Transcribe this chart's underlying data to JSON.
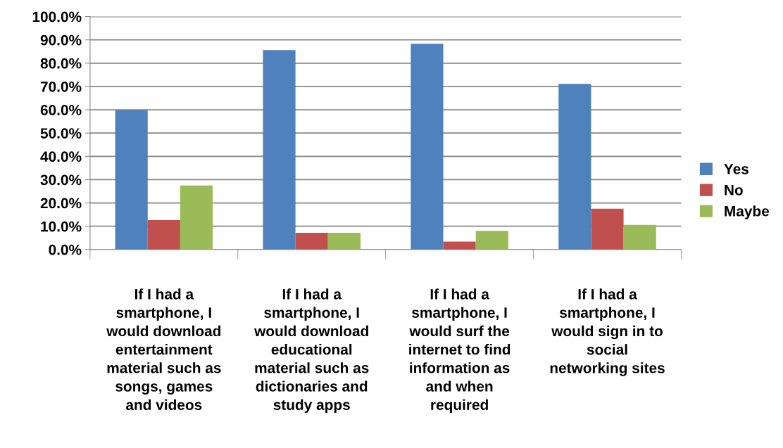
{
  "chart_data": {
    "type": "bar",
    "categories": [
      "If I had a\nsmartphone, I\nwould download\nentertainment\nmaterial such as\nsongs, games\nand videos",
      "If I had a\nsmartphone, I\nwould download\neducational\nmaterial such as\ndictionaries and\nstudy apps",
      "If I had a\nsmartphone, I\nwould surf the\ninternet to find\ninformation as\nand when\nrequired",
      "If I had a\nsmartphone, I\nwould sign in to\nsocial\nnetworking sites"
    ],
    "series": [
      {
        "name": "Yes",
        "color": "#4f81bd",
        "values": [
          59.8,
          85.6,
          88.3,
          71.1
        ]
      },
      {
        "name": "No",
        "color": "#c0504d",
        "values": [
          12.6,
          7.2,
          3.4,
          17.5
        ]
      },
      {
        "name": "Maybe",
        "color": "#9bbb59",
        "values": [
          27.5,
          7.2,
          8.0,
          10.6
        ]
      }
    ],
    "ylim": [
      0,
      100
    ],
    "yticks": [
      {
        "value": 0,
        "label": "0.0%"
      },
      {
        "value": 10,
        "label": "10.0%"
      },
      {
        "value": 20,
        "label": "20.0%"
      },
      {
        "value": 30,
        "label": "30.0%"
      },
      {
        "value": 40,
        "label": "40.0%"
      },
      {
        "value": 50,
        "label": "50.0%"
      },
      {
        "value": 60,
        "label": "60.0%"
      },
      {
        "value": 70,
        "label": "70.0%"
      },
      {
        "value": 80,
        "label": "80.0%"
      },
      {
        "value": 90,
        "label": "90.0%"
      },
      {
        "value": 100,
        "label": "100.0%"
      }
    ],
    "grid": "y",
    "legend": "right"
  }
}
